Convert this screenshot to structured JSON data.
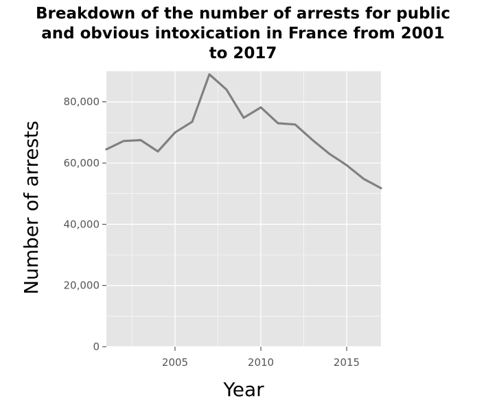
{
  "chart_data": {
    "type": "line",
    "title_lines": [
      "Breakdown of the number of arrests for public",
      "and obvious intoxication in France from 2001",
      "to 2017"
    ],
    "xlabel": "Year",
    "ylabel": "Number of arrests",
    "xlim": [
      2001,
      2017
    ],
    "ylim": [
      0,
      90000
    ],
    "x_ticks": [
      2005,
      2010,
      2015
    ],
    "x_tick_labels": [
      "2005",
      "2010",
      "2015"
    ],
    "y_ticks": [
      0,
      20000,
      40000,
      60000,
      80000
    ],
    "y_tick_labels": [
      "0",
      "20,000",
      "40,000",
      "60,000",
      "80,000"
    ],
    "grid": true,
    "legend": "none",
    "colors": {
      "panel": "#e5e5e5",
      "gridline": "#ffffff",
      "line": "#808080"
    },
    "series": [
      {
        "x": [
          2001,
          2002,
          2003,
          2004,
          2005,
          2006,
          2007,
          2008,
          2009,
          2010,
          2011,
          2012,
          2013,
          2014,
          2015,
          2016,
          2017
        ],
        "values": [
          64500,
          67200,
          67500,
          63800,
          70000,
          73500,
          89000,
          84000,
          74800,
          78200,
          73000,
          72600,
          67600,
          63000,
          59300,
          54800,
          51800
        ]
      }
    ]
  }
}
